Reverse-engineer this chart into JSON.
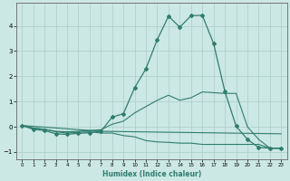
{
  "xlabel": "Humidex (Indice chaleur)",
  "line_color": "#2e7d6e",
  "background_color": "#cce8e4",
  "grid_color": "#aaccc8",
  "series1_x": [
    0,
    1,
    2,
    3,
    4,
    5,
    6,
    7,
    8,
    9,
    10,
    11,
    12,
    13,
    14,
    15,
    16,
    17,
    18,
    19,
    20,
    21,
    22,
    23
  ],
  "series1_y": [
    0.05,
    -0.1,
    -0.15,
    -0.28,
    -0.3,
    -0.26,
    -0.24,
    -0.18,
    0.38,
    0.52,
    1.55,
    2.3,
    3.45,
    4.38,
    3.95,
    4.4,
    4.42,
    3.3,
    1.4,
    0.02,
    -0.5,
    -0.82,
    -0.85,
    -0.85
  ],
  "series2_x": [
    0,
    1,
    2,
    3,
    4,
    5,
    6,
    7,
    8,
    9,
    10,
    11,
    12,
    13,
    14,
    15,
    16,
    17,
    18,
    19,
    20,
    21,
    22,
    23
  ],
  "series2_y": [
    0.05,
    -0.05,
    -0.1,
    -0.18,
    -0.2,
    -0.18,
    -0.15,
    -0.12,
    0.1,
    0.22,
    0.55,
    0.8,
    1.05,
    1.25,
    1.05,
    1.15,
    1.38,
    1.35,
    1.32,
    1.32,
    0.0,
    -0.5,
    -0.85,
    -0.85
  ],
  "series3_x": [
    0,
    1,
    2,
    3,
    4,
    5,
    6,
    7,
    8,
    9,
    10,
    11,
    12,
    13,
    14,
    15,
    16,
    17,
    18,
    19,
    20,
    21,
    22,
    23
  ],
  "series3_y": [
    0.05,
    -0.06,
    -0.1,
    -0.2,
    -0.25,
    -0.22,
    -0.2,
    -0.25,
    -0.25,
    -0.35,
    -0.4,
    -0.55,
    -0.6,
    -0.62,
    -0.65,
    -0.65,
    -0.7,
    -0.7,
    -0.7,
    -0.7,
    -0.7,
    -0.7,
    -0.85,
    -0.85
  ],
  "series4_x": [
    0,
    7,
    23
  ],
  "series4_y": [
    0.05,
    -0.18,
    -0.28
  ],
  "xlim": [
    -0.5,
    23.5
  ],
  "ylim": [
    -1.3,
    4.9
  ],
  "yticks": [
    -1,
    0,
    1,
    2,
    3,
    4
  ],
  "xticks": [
    0,
    1,
    2,
    3,
    4,
    5,
    6,
    7,
    8,
    9,
    10,
    11,
    12,
    13,
    14,
    15,
    16,
    17,
    18,
    19,
    20,
    21,
    22,
    23
  ]
}
